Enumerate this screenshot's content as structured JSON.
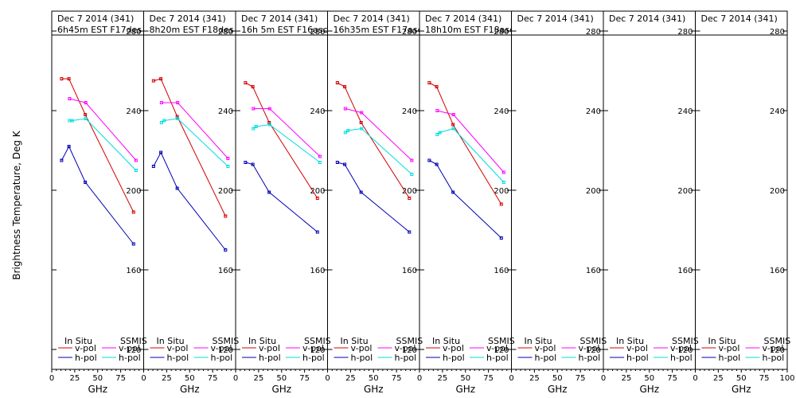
{
  "chart_data": {
    "type": "line",
    "ylabel": "Brightness Temperature, Deg K",
    "xlabel": "GHz",
    "xlim": [
      0,
      100
    ],
    "ylim": [
      110,
      290
    ],
    "x_ticks": [
      0,
      25,
      50,
      75,
      100
    ],
    "x_tick_labels": [
      "0",
      "25",
      "50",
      "75",
      "100"
    ],
    "y_ticks": [
      120,
      160,
      200,
      240,
      280
    ],
    "legend": {
      "left_header": "In Situ",
      "right_header": "SSMIS",
      "v_label": "v-pol",
      "h_label": "h-pol"
    },
    "colors": {
      "insitu_v": "#d40000",
      "insitu_h": "#0000b4",
      "ssmis_v": "#ff00ff",
      "ssmis_h": "#00dede"
    },
    "panels": [
      {
        "title_line1": "Dec 7 2014 (341)",
        "title_line2": "6h45m EST F17des",
        "insitu_v": {
          "x": [
            10.7,
            18.7,
            36.5,
            89
          ],
          "y": [
            256,
            256,
            238,
            189
          ]
        },
        "insitu_h": {
          "x": [
            10.7,
            18.7,
            36.5,
            89
          ],
          "y": [
            215,
            222,
            204,
            173
          ]
        },
        "ssmis_v": {
          "x": [
            19.35,
            37,
            91.65
          ],
          "y": [
            246,
            244,
            215
          ]
        },
        "ssmis_h": {
          "x": [
            19.35,
            22.235,
            37,
            91.65
          ],
          "y": [
            235,
            235,
            236,
            210
          ]
        }
      },
      {
        "title_line1": "Dec 7 2014 (341)",
        "title_line2": "8h20m EST F18des",
        "insitu_v": {
          "x": [
            10.7,
            18.7,
            36.5,
            89
          ],
          "y": [
            255,
            256,
            237,
            187
          ]
        },
        "insitu_h": {
          "x": [
            10.7,
            18.7,
            36.5,
            89
          ],
          "y": [
            212,
            219,
            201,
            170
          ]
        },
        "ssmis_v": {
          "x": [
            19.35,
            37,
            91.65
          ],
          "y": [
            244,
            244,
            216
          ]
        },
        "ssmis_h": {
          "x": [
            19.35,
            22.235,
            37,
            91.65
          ],
          "y": [
            234,
            235,
            236,
            212
          ]
        }
      },
      {
        "title_line1": "Dec 7 2014 (341)",
        "title_line2": "16h 5m EST F16asc",
        "insitu_v": {
          "x": [
            10.7,
            18.7,
            36.5,
            89
          ],
          "y": [
            254,
            252,
            234,
            196
          ]
        },
        "insitu_h": {
          "x": [
            10.7,
            18.7,
            36.5,
            89
          ],
          "y": [
            214,
            213,
            199,
            179
          ]
        },
        "ssmis_v": {
          "x": [
            19.35,
            37,
            91.65
          ],
          "y": [
            241,
            241,
            217
          ]
        },
        "ssmis_h": {
          "x": [
            19.35,
            22.235,
            37,
            91.65
          ],
          "y": [
            231,
            232,
            233,
            214
          ]
        }
      },
      {
        "title_line1": "Dec 7 2014 (341)",
        "title_line2": "16h35m EST F17asc",
        "insitu_v": {
          "x": [
            10.7,
            18.7,
            36.5,
            89
          ],
          "y": [
            254,
            252,
            234,
            196
          ]
        },
        "insitu_h": {
          "x": [
            10.7,
            18.7,
            36.5,
            89
          ],
          "y": [
            214,
            213,
            199,
            179
          ]
        },
        "ssmis_v": {
          "x": [
            19.35,
            37,
            91.65
          ],
          "y": [
            241,
            239,
            215
          ]
        },
        "ssmis_h": {
          "x": [
            19.35,
            22.235,
            37,
            91.65
          ],
          "y": [
            229,
            230,
            231,
            208
          ]
        }
      },
      {
        "title_line1": "Dec 7 2014 (341)",
        "title_line2": "18h10m EST F18asc",
        "insitu_v": {
          "x": [
            10.7,
            18.7,
            36.5,
            89
          ],
          "y": [
            254,
            252,
            233,
            193
          ]
        },
        "insitu_h": {
          "x": [
            10.7,
            18.7,
            36.5,
            89
          ],
          "y": [
            215,
            213,
            199,
            176
          ]
        },
        "ssmis_v": {
          "x": [
            19.35,
            37,
            91.65
          ],
          "y": [
            240,
            238,
            209
          ]
        },
        "ssmis_h": {
          "x": [
            19.35,
            22.235,
            37,
            91.65
          ],
          "y": [
            228,
            229,
            231,
            204
          ]
        }
      },
      {
        "title_line1": "Dec 7 2014 (341)",
        "title_line2": ""
      },
      {
        "title_line1": "Dec 7 2014 (341)",
        "title_line2": ""
      },
      {
        "title_line1": "Dec 7 2014 (341)",
        "title_line2": ""
      }
    ]
  }
}
